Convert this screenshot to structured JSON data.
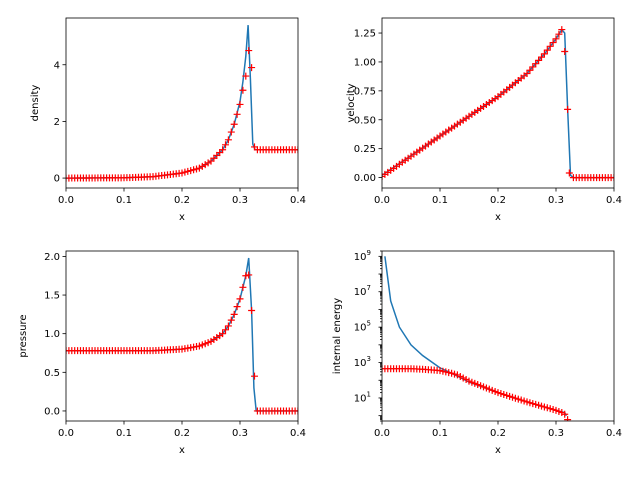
{
  "chart_data": [
    {
      "type": "line",
      "panel": "top-left",
      "xlabel": "x",
      "ylabel": "density",
      "xlim": [
        0,
        0.4
      ],
      "ylim": [
        -0.35,
        5.65
      ],
      "yscale": "linear",
      "xticks": [
        0,
        0.1,
        0.2,
        0.3,
        0.4
      ],
      "xtick_labels": [
        "0.0",
        "0.1",
        "0.2",
        "0.3",
        "0.4"
      ],
      "yticks": [
        0,
        2,
        4
      ],
      "ytick_labels": [
        "0",
        "2",
        "4"
      ],
      "series": [
        {
          "style": "line",
          "color": "#1f77b4",
          "x": [
            0,
            0.1,
            0.15,
            0.2,
            0.23,
            0.25,
            0.27,
            0.28,
            0.29,
            0.3,
            0.305,
            0.31,
            0.314,
            0.318,
            0.322,
            0.326,
            0.33,
            0.4
          ],
          "y": [
            0,
            0.01,
            0.05,
            0.18,
            0.35,
            0.6,
            1.0,
            1.35,
            1.9,
            2.7,
            3.4,
            4.3,
            5.4,
            3.5,
            1.2,
            1.0,
            1.0,
            1.0
          ]
        },
        {
          "style": "markers",
          "marker": "+",
          "color": "#ff0000",
          "x": [
            0,
            0.1,
            0.15,
            0.2,
            0.23,
            0.25,
            0.27,
            0.28,
            0.29,
            0.3,
            0.305,
            0.31,
            0.315,
            0.32,
            0.325,
            0.33,
            0.4
          ],
          "y": [
            0,
            0.01,
            0.05,
            0.18,
            0.35,
            0.6,
            1.0,
            1.35,
            1.9,
            2.6,
            3.1,
            3.6,
            4.5,
            3.9,
            1.1,
            1.0,
            1.0
          ]
        }
      ]
    },
    {
      "type": "line",
      "panel": "top-right",
      "xlabel": "x",
      "ylabel": "velocity",
      "xlim": [
        0,
        0.4
      ],
      "ylim": [
        -0.09,
        1.38
      ],
      "yscale": "linear",
      "xticks": [
        0,
        0.1,
        0.2,
        0.3,
        0.4
      ],
      "xtick_labels": [
        "0.0",
        "0.1",
        "0.2",
        "0.3",
        "0.4"
      ],
      "yticks": [
        0,
        0.25,
        0.5,
        0.75,
        1.0,
        1.25
      ],
      "ytick_labels": [
        "0.00",
        "0.25",
        "0.50",
        "0.75",
        "1.00",
        "1.25"
      ],
      "series": [
        {
          "style": "line",
          "color": "#1f77b4",
          "x": [
            0,
            0.1,
            0.2,
            0.25,
            0.28,
            0.3,
            0.31,
            0.315,
            0.32,
            0.325,
            0.33,
            0.4
          ],
          "y": [
            0.02,
            0.36,
            0.7,
            0.9,
            1.07,
            1.2,
            1.28,
            1.25,
            0.6,
            0.02,
            0,
            0
          ]
        },
        {
          "style": "markers",
          "marker": "+",
          "color": "#ff0000",
          "x": [
            0,
            0.1,
            0.2,
            0.25,
            0.28,
            0.3,
            0.31,
            0.315,
            0.32,
            0.323,
            0.33,
            0.4
          ],
          "y": [
            0.01,
            0.36,
            0.7,
            0.9,
            1.07,
            1.2,
            1.28,
            1.09,
            0.59,
            0.04,
            0,
            0
          ]
        }
      ]
    },
    {
      "type": "line",
      "panel": "bottom-left",
      "xlabel": "x",
      "ylabel": "pressure",
      "xlim": [
        0,
        0.4
      ],
      "ylim": [
        -0.13,
        2.07
      ],
      "yscale": "linear",
      "xticks": [
        0,
        0.1,
        0.2,
        0.3,
        0.4
      ],
      "xtick_labels": [
        "0.0",
        "0.1",
        "0.2",
        "0.3",
        "0.4"
      ],
      "yticks": [
        0,
        0.5,
        1.0,
        1.5,
        2.0
      ],
      "ytick_labels": [
        "0.0",
        "0.5",
        "1.0",
        "1.5",
        "2.0"
      ],
      "series": [
        {
          "style": "line",
          "color": "#1f77b4",
          "x": [
            0,
            0.15,
            0.2,
            0.23,
            0.25,
            0.27,
            0.28,
            0.29,
            0.3,
            0.305,
            0.31,
            0.315,
            0.32,
            0.324,
            0.328,
            0.33,
            0.4
          ],
          "y": [
            0.78,
            0.78,
            0.8,
            0.84,
            0.9,
            1.0,
            1.1,
            1.25,
            1.45,
            1.6,
            1.75,
            1.98,
            1.3,
            0.3,
            0,
            0,
            0
          ]
        },
        {
          "style": "markers",
          "marker": "+",
          "color": "#ff0000",
          "x": [
            0,
            0.15,
            0.2,
            0.23,
            0.25,
            0.27,
            0.28,
            0.29,
            0.3,
            0.305,
            0.31,
            0.315,
            0.32,
            0.325,
            0.33,
            0.4
          ],
          "y": [
            0.78,
            0.78,
            0.8,
            0.84,
            0.9,
            1.0,
            1.1,
            1.25,
            1.45,
            1.6,
            1.75,
            1.76,
            1.3,
            0.45,
            0,
            0
          ]
        }
      ]
    },
    {
      "type": "line",
      "panel": "bottom-right",
      "xlabel": "x",
      "ylabel": "internal energy",
      "xlim": [
        0,
        0.4
      ],
      "ylim": [
        0.5,
        2000000000
      ],
      "yscale": "log",
      "xticks": [
        0,
        0.1,
        0.2,
        0.3,
        0.4
      ],
      "xtick_labels": [
        "0.0",
        "0.1",
        "0.2",
        "0.3",
        "0.4"
      ],
      "yticks": [
        10,
        1000,
        100000,
        10000000,
        1000000000
      ],
      "ytick_labels": [
        "10^1",
        "10^3",
        "10^5",
        "10^7",
        "10^9"
      ],
      "series": [
        {
          "style": "line",
          "color": "#1f77b4",
          "x": [
            0.005,
            0.015,
            0.03,
            0.05,
            0.07,
            0.1,
            0.12,
            0.15,
            0.2,
            0.25,
            0.3,
            0.315,
            0.318
          ],
          "y": [
            1000000000,
            3000000,
            100000,
            10000,
            2500,
            500,
            250,
            80,
            20,
            6,
            2,
            1.5,
            1
          ]
        },
        {
          "style": "markers",
          "marker": "+",
          "color": "#ff0000",
          "x": [
            0,
            0.05,
            0.07,
            0.1,
            0.12,
            0.13,
            0.15,
            0.2,
            0.25,
            0.3,
            0.31,
            0.315,
            0.32
          ],
          "y": [
            450,
            450,
            420,
            350,
            250,
            200,
            90,
            20,
            6,
            2,
            1.5,
            1.2,
            0.6
          ]
        }
      ]
    }
  ]
}
